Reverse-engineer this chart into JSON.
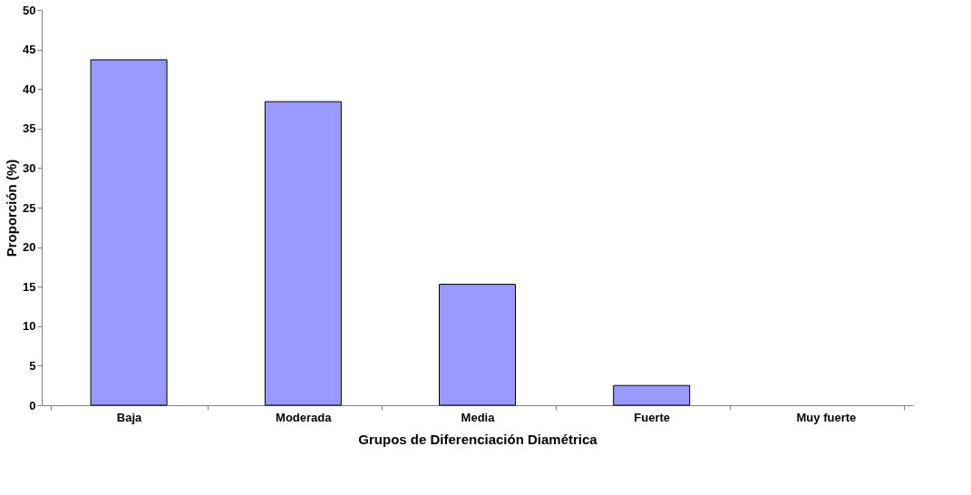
{
  "chart_data": {
    "type": "bar",
    "xlabel": "Grupos de Diferenciación Diamétrica",
    "ylabel": "Proporción (%)",
    "categories": [
      "Baja",
      "Moderada",
      "Media",
      "Fuerte",
      "Muy fuerte"
    ],
    "values": [
      43.7,
      38.4,
      15.3,
      2.5,
      0
    ],
    "color": "#9999ff",
    "ylim": [
      0,
      50
    ],
    "yticks": [
      0,
      5,
      10,
      15,
      20,
      25,
      30,
      35,
      40,
      45,
      50
    ],
    "grid": false
  }
}
